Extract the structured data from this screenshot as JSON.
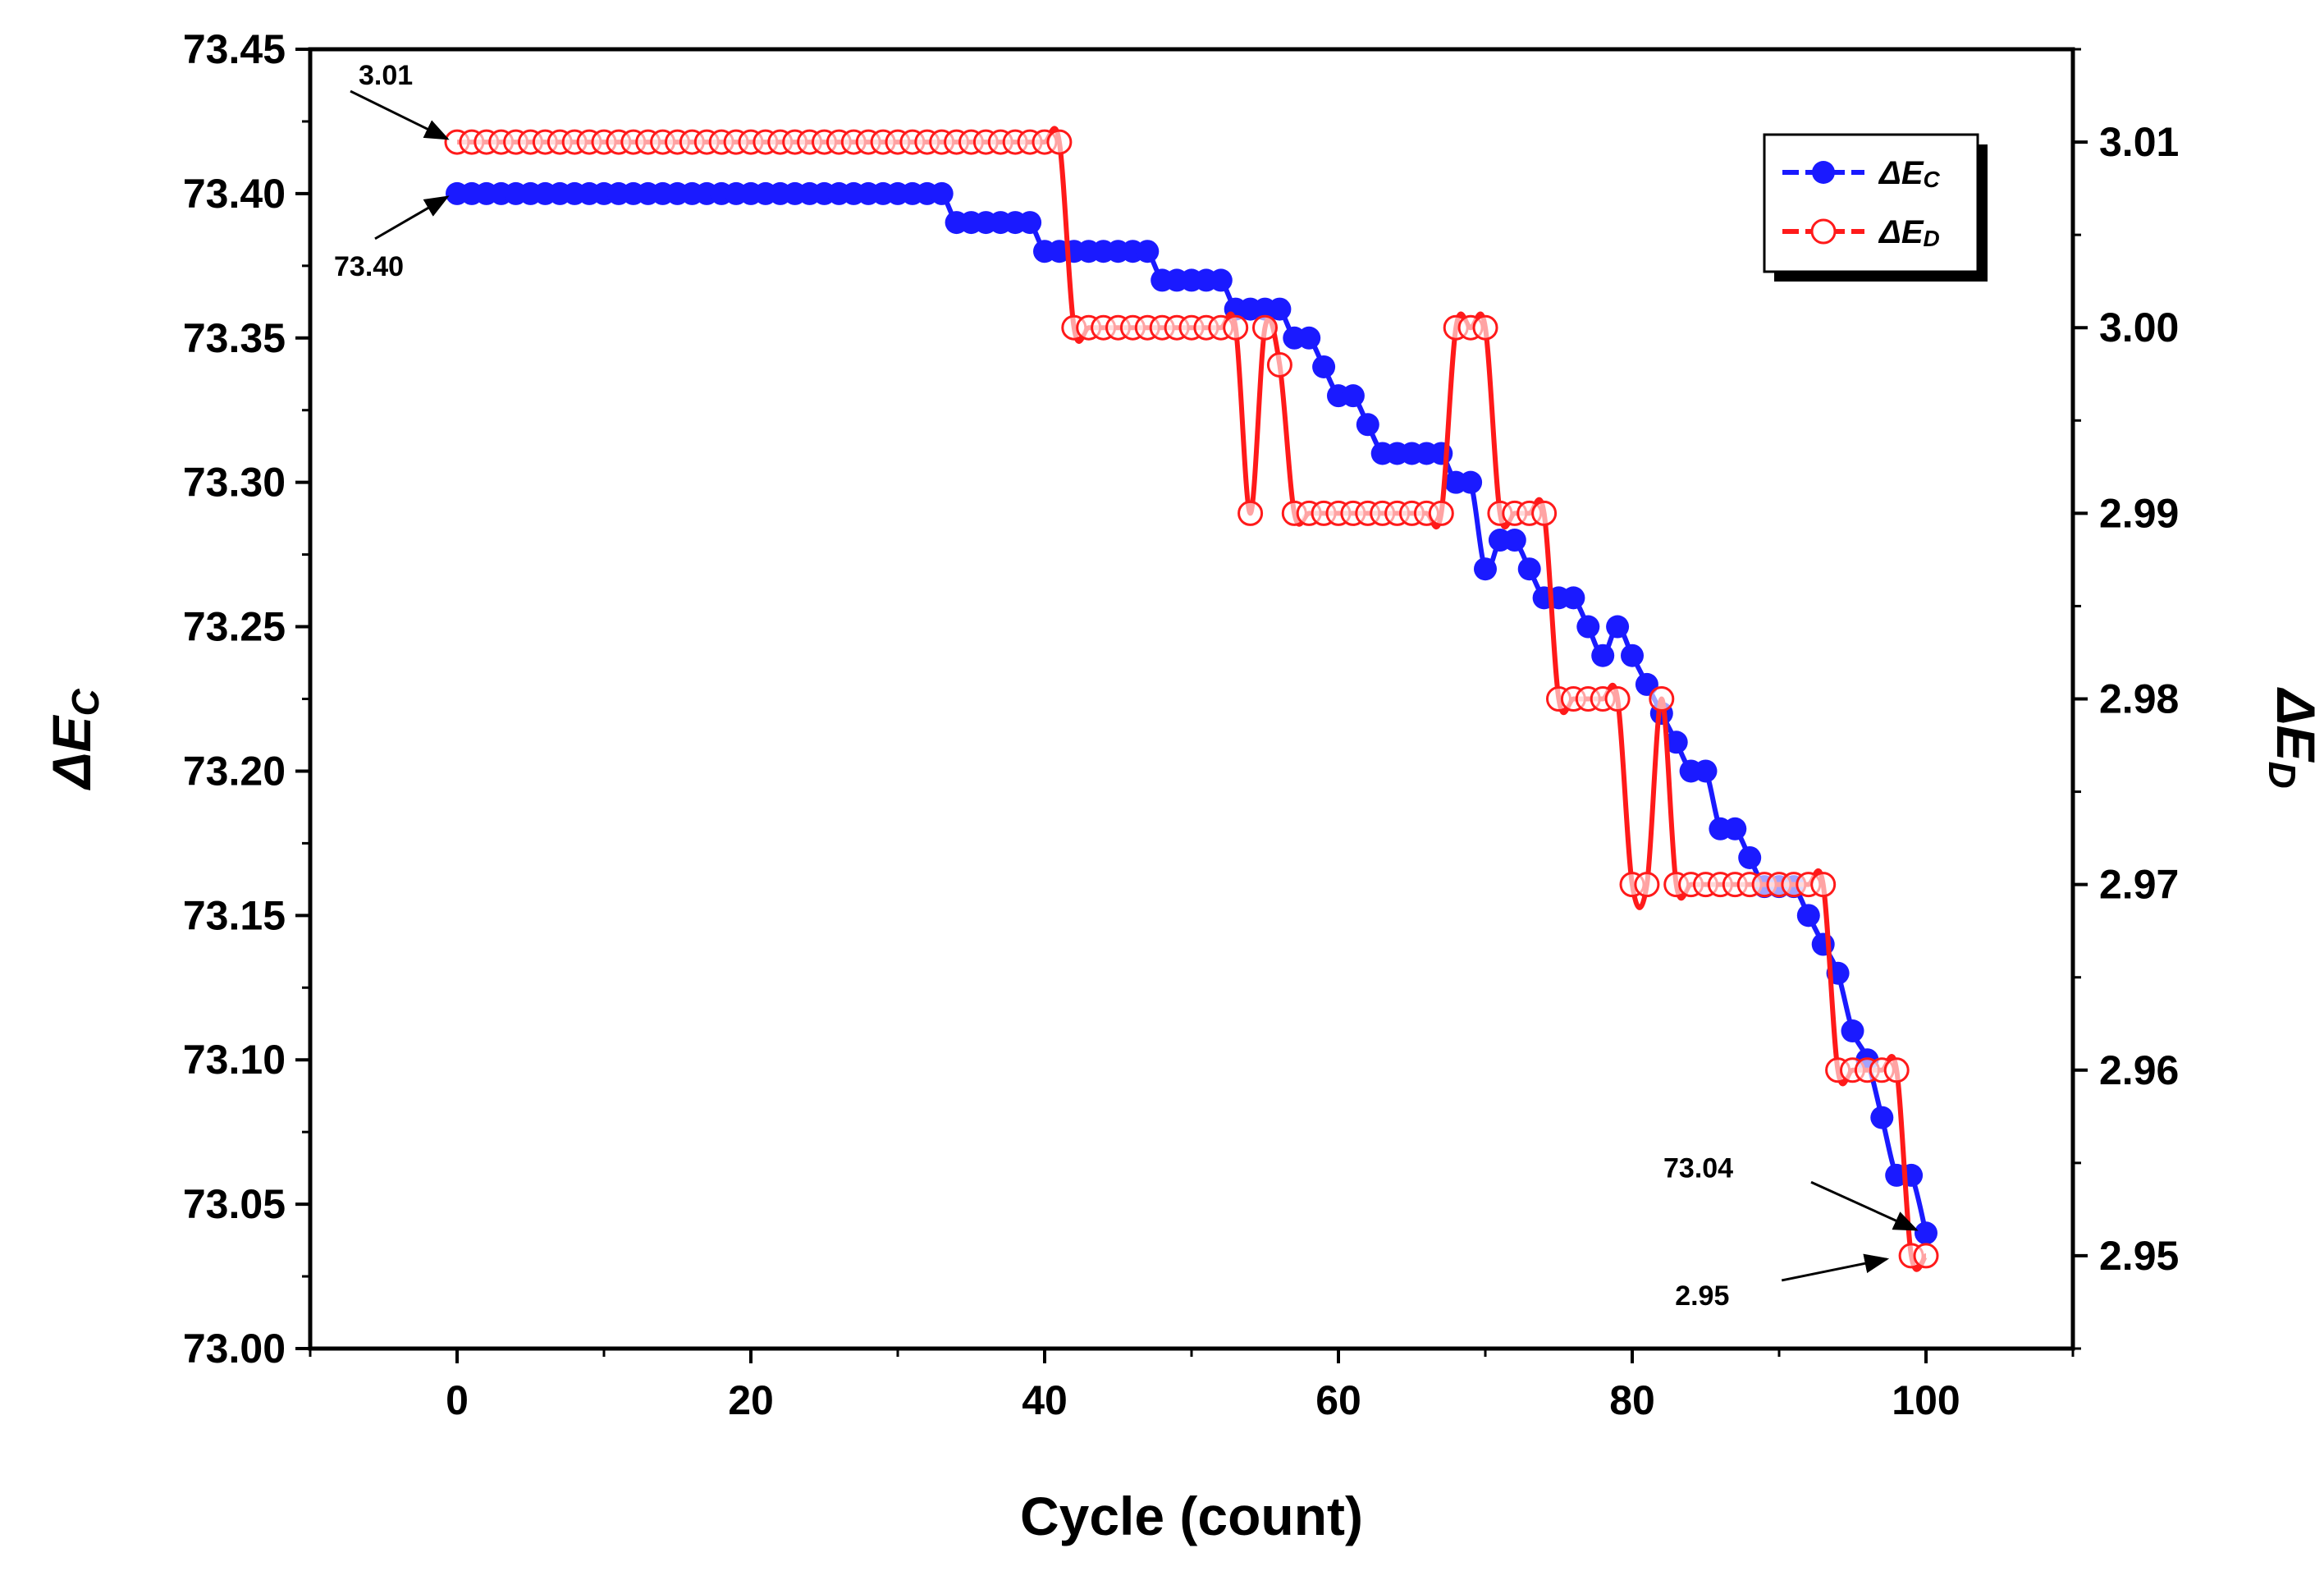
{
  "chart_data": {
    "type": "line",
    "title": "",
    "xlabel": "Cycle (count)",
    "ylabel": "ΔE",
    "ylabel_sub": "C",
    "y2label": "ΔE",
    "y2label_sub": "D",
    "xlim": [
      -10,
      110
    ],
    "ylim": [
      73.0,
      73.45
    ],
    "y2lim": [
      2.945,
      3.015
    ],
    "xticks": [
      "0",
      "20",
      "40",
      "60",
      "80",
      "100"
    ],
    "xtick_values": [
      0,
      20,
      40,
      60,
      80,
      100
    ],
    "yticks": [
      "73.00",
      "73.05",
      "73.10",
      "73.15",
      "73.20",
      "73.25",
      "73.30",
      "73.35",
      "73.40",
      "73.45"
    ],
    "ytick_values": [
      73.0,
      73.05,
      73.1,
      73.15,
      73.2,
      73.25,
      73.3,
      73.35,
      73.4,
      73.45
    ],
    "y2ticks": [
      "2.95",
      "2.96",
      "2.97",
      "2.98",
      "2.99",
      "3.00",
      "3.01"
    ],
    "y2tick_values": [
      2.95,
      2.96,
      2.97,
      2.98,
      2.99,
      3.0,
      3.01
    ],
    "legend": {
      "position": "top-right",
      "entries": [
        {
          "label": "ΔE",
          "sub": "C"
        },
        {
          "label": "ΔE",
          "sub": "D"
        }
      ]
    },
    "series": [
      {
        "name": "ΔEC",
        "axis": "left",
        "color": "#1a1aff",
        "marker": "filled-circle",
        "segments": [
          {
            "from": 0,
            "to": 33,
            "value": 73.4
          },
          {
            "from": 34,
            "to": 39,
            "value": 73.39
          },
          {
            "from": 40,
            "to": 47,
            "value": 73.38
          },
          {
            "from": 48,
            "to": 52,
            "value": 73.37
          },
          {
            "from": 53,
            "to": 56,
            "value": 73.36
          },
          {
            "from": 57,
            "to": 58,
            "value": 73.35
          },
          {
            "from": 59,
            "to": 59,
            "value": 73.34
          },
          {
            "from": 60,
            "to": 61,
            "value": 73.33
          },
          {
            "from": 62,
            "to": 62,
            "value": 73.32
          },
          {
            "from": 63,
            "to": 67,
            "value": 73.31
          },
          {
            "from": 68,
            "to": 69,
            "value": 73.3
          },
          {
            "from": 70,
            "to": 70,
            "value": 73.27
          },
          {
            "from": 71,
            "to": 72,
            "value": 73.28
          },
          {
            "from": 73,
            "to": 73,
            "value": 73.27
          },
          {
            "from": 74,
            "to": 76,
            "value": 73.26
          },
          {
            "from": 77,
            "to": 77,
            "value": 73.25
          },
          {
            "from": 78,
            "to": 78,
            "value": 73.24
          },
          {
            "from": 79,
            "to": 79,
            "value": 73.25
          },
          {
            "from": 80,
            "to": 80,
            "value": 73.24
          },
          {
            "from": 81,
            "to": 81,
            "value": 73.23
          },
          {
            "from": 82,
            "to": 82,
            "value": 73.22
          },
          {
            "from": 83,
            "to": 83,
            "value": 73.21
          },
          {
            "from": 84,
            "to": 85,
            "value": 73.2
          },
          {
            "from": 86,
            "to": 87,
            "value": 73.18
          },
          {
            "from": 88,
            "to": 88,
            "value": 73.17
          },
          {
            "from": 89,
            "to": 91,
            "value": 73.16
          },
          {
            "from": 92,
            "to": 92,
            "value": 73.15
          },
          {
            "from": 93,
            "to": 93,
            "value": 73.14
          },
          {
            "from": 94,
            "to": 94,
            "value": 73.13
          },
          {
            "from": 95,
            "to": 95,
            "value": 73.11
          },
          {
            "from": 96,
            "to": 96,
            "value": 73.1
          },
          {
            "from": 97,
            "to": 97,
            "value": 73.08
          },
          {
            "from": 98,
            "to": 99,
            "value": 73.06
          },
          {
            "from": 100,
            "to": 100,
            "value": 73.04
          }
        ]
      },
      {
        "name": "ΔED",
        "axis": "right",
        "color": "#ff1a1a",
        "marker": "open-circle",
        "segments": [
          {
            "from": 0,
            "to": 41,
            "value": 3.01
          },
          {
            "from": 42,
            "to": 53,
            "value": 3.0
          },
          {
            "from": 54,
            "to": 54,
            "value": 2.99
          },
          {
            "from": 55,
            "to": 55,
            "value": 3.0
          },
          {
            "from": 56,
            "to": 56,
            "value": 2.998
          },
          {
            "from": 57,
            "to": 67,
            "value": 2.99
          },
          {
            "from": 68,
            "to": 70,
            "value": 3.0
          },
          {
            "from": 71,
            "to": 74,
            "value": 2.99
          },
          {
            "from": 75,
            "to": 79,
            "value": 2.98
          },
          {
            "from": 80,
            "to": 80,
            "value": 2.97
          },
          {
            "from": 81,
            "to": 81,
            "value": 2.97
          },
          {
            "from": 82,
            "to": 82,
            "value": 2.98
          },
          {
            "from": 83,
            "to": 93,
            "value": 2.97
          },
          {
            "from": 94,
            "to": 98,
            "value": 2.96
          },
          {
            "from": 99,
            "to": 100,
            "value": 2.95
          }
        ]
      }
    ],
    "annotations": [
      {
        "text": "3.01",
        "x": 0,
        "axis": "right",
        "value": 3.01
      },
      {
        "text": "73.40",
        "x": 0,
        "axis": "left",
        "value": 73.4
      },
      {
        "text": "73.04",
        "x": 100,
        "axis": "left",
        "value": 73.04
      },
      {
        "text": "2.95",
        "x": 98,
        "axis": "right",
        "value": 2.95
      }
    ]
  }
}
